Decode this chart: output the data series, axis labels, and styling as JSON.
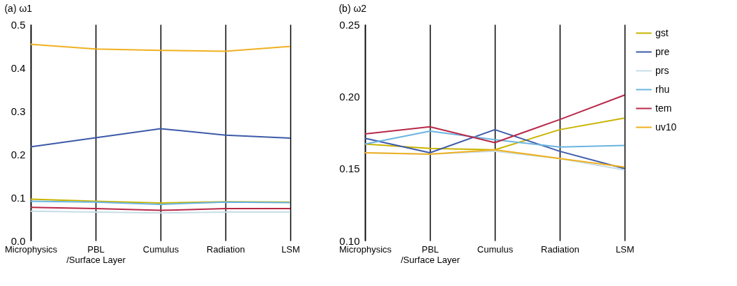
{
  "chart_data": [
    {
      "type": "line",
      "title": "(a) ω1",
      "categories": [
        "Microphysics",
        "PBL\n/Surface Layer",
        "Cumulus",
        "Radiation",
        "LSM"
      ],
      "ylim": [
        0,
        0.5
      ],
      "yticks": [
        {
          "value": 0,
          "label": "0.0"
        },
        0.1,
        0.2,
        0.3,
        0.4,
        0.5
      ],
      "grid": "x",
      "legend": false,
      "series": [
        {
          "color": "#c8b400",
          "values": [
            0.096,
            0.091,
            0.087,
            0.09,
            0.089
          ]
        },
        {
          "color": "#3c5aa8",
          "values": [
            0.217,
            0.238,
            0.259,
            0.244,
            0.237
          ]
        },
        {
          "color": "#c6dde6",
          "values": [
            0.068,
            0.066,
            0.064,
            0.066,
            0.066
          ]
        },
        {
          "color": "#6ab4e0",
          "values": [
            0.091,
            0.089,
            0.084,
            0.089,
            0.088
          ]
        },
        {
          "color": "#b82848",
          "values": [
            0.077,
            0.074,
            0.07,
            0.074,
            0.074
          ]
        },
        {
          "color": "#f0b020",
          "values": [
            0.454,
            0.443,
            0.44,
            0.438,
            0.449
          ]
        }
      ]
    },
    {
      "type": "line",
      "title": "(b) ω2",
      "categories": [
        "Microphysics",
        "PBL\n/Surface Layer",
        "Cumulus",
        "Radiation",
        "LSM"
      ],
      "ylim": [
        0.1,
        0.25
      ],
      "yticks": [
        {
          "value": 0.1,
          "label": "0.10"
        },
        0.15,
        {
          "value": 0.2,
          "label": "0.20"
        },
        0.25
      ],
      "grid": "x",
      "legend": "top right",
      "series": [
        {
          "name": "gst",
          "color": "#c8b400",
          "values": [
            0.167,
            0.164,
            0.163,
            0.177,
            0.185
          ]
        },
        {
          "name": "pre",
          "color": "#3c5aa8",
          "values": [
            0.171,
            0.161,
            0.177,
            0.162,
            0.15
          ]
        },
        {
          "name": "prs",
          "color": "#c6dde6",
          "values": [
            0.161,
            0.16,
            0.162,
            0.157,
            0.149
          ]
        },
        {
          "name": "rhu",
          "color": "#6ab4e0",
          "values": [
            0.167,
            0.176,
            0.17,
            0.165,
            0.166
          ]
        },
        {
          "name": "tem",
          "color": "#b82848",
          "values": [
            0.174,
            0.179,
            0.168,
            0.184,
            0.201
          ]
        },
        {
          "name": "uv10",
          "color": "#f0b020",
          "values": [
            0.161,
            0.16,
            0.163,
            0.157,
            0.151
          ]
        }
      ]
    }
  ]
}
